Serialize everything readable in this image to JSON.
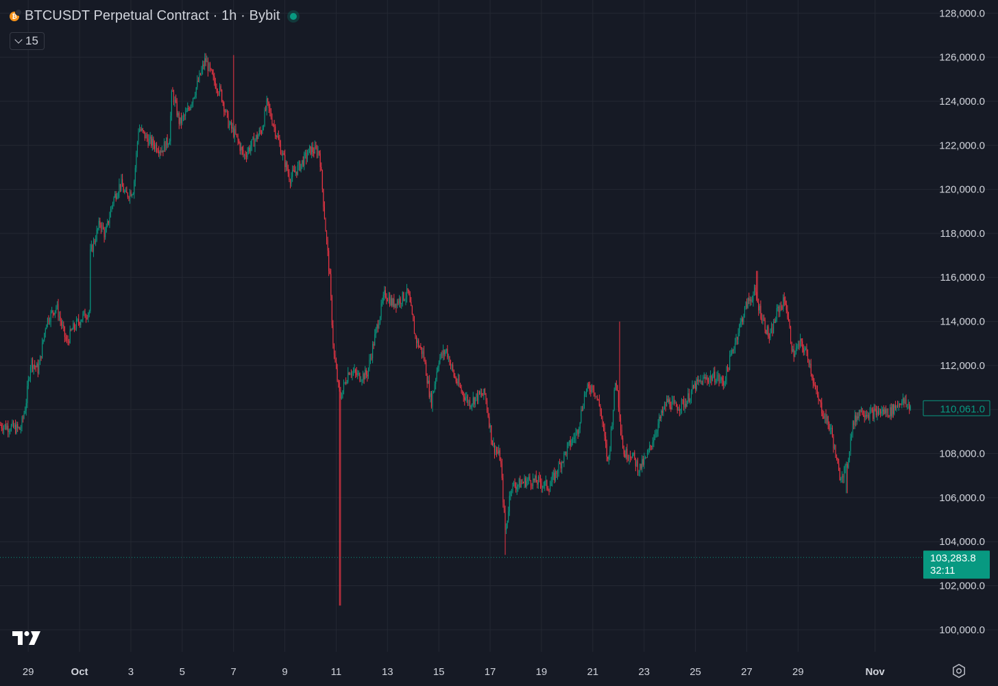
{
  "header": {
    "title": "BTCUSDT Perpetual Contract · 1h · Bybit",
    "coin_icon": "bitcoin-icon",
    "status_color": "#089981",
    "indicator_value": "15"
  },
  "colors": {
    "up": "#089981",
    "down": "#f23645",
    "background": "#161a25",
    "grid": "#242833"
  },
  "chart_data": {
    "type": "candlestick",
    "title": "BTCUSDT Perpetual Contract · 1h · Bybit",
    "ylim": [
      99000,
      128600
    ],
    "y_ticks": [
      100000,
      102000,
      104000,
      106000,
      108000,
      110000,
      112000,
      114000,
      116000,
      118000,
      120000,
      122000,
      124000,
      126000,
      128000
    ],
    "y_tick_labels": [
      "100,000.0",
      "102,000.0",
      "104,000.0",
      "106,000.0",
      "108,000.0",
      "110,000.0",
      "112,000.0",
      "114,000.0",
      "116,000.0",
      "118,000.0",
      "120,000.0",
      "122,000.0",
      "124,000.0",
      "126,000.0",
      "128,000.0"
    ],
    "x_ticks": [
      "29",
      "Oct",
      "3",
      "5",
      "7",
      "9",
      "11",
      "13",
      "15",
      "17",
      "19",
      "21",
      "23",
      "25",
      "27",
      "29",
      "Nov"
    ],
    "x_tick_days": [
      -2,
      0,
      2,
      4,
      6,
      8,
      10,
      12,
      14,
      16,
      18,
      20,
      22,
      24,
      26,
      28,
      31
    ],
    "x_range_days": [
      -3.1,
      32.8
    ],
    "grid": true,
    "last_price": {
      "value": 110061.0,
      "label": "110,061.0"
    },
    "marker_price": {
      "value": 103283.8,
      "label": "103,283.8",
      "countdown": "32:11"
    },
    "price_path": [
      [
        -3.1,
        109300
      ],
      [
        -2.3,
        109100
      ],
      [
        -2.1,
        110200
      ],
      [
        -1.9,
        112200
      ],
      [
        -1.6,
        111800
      ],
      [
        -1.3,
        114000
      ],
      [
        -0.9,
        114700
      ],
      [
        -0.5,
        113000
      ],
      [
        -0.3,
        113600
      ],
      [
        0.1,
        114200
      ],
      [
        0.4,
        114500
      ],
      [
        0.4,
        117000
      ],
      [
        0.8,
        118500
      ],
      [
        1.0,
        117900
      ],
      [
        1.3,
        119500
      ],
      [
        1.6,
        120300
      ],
      [
        1.8,
        119700
      ],
      [
        2.1,
        120000
      ],
      [
        2.3,
        122800
      ],
      [
        2.7,
        122200
      ],
      [
        3.2,
        121800
      ],
      [
        3.5,
        122300
      ],
      [
        3.6,
        124500
      ],
      [
        3.9,
        123000
      ],
      [
        4.2,
        123500
      ],
      [
        4.6,
        124800
      ],
      [
        4.9,
        125900
      ],
      [
        5.2,
        125000
      ],
      [
        5.5,
        124400
      ],
      [
        5.8,
        123000
      ],
      [
        6.1,
        122400
      ],
      [
        6.4,
        121500
      ],
      [
        6.8,
        122200
      ],
      [
        7.1,
        122700
      ],
      [
        7.3,
        123900
      ],
      [
        7.6,
        122800
      ],
      [
        7.9,
        121600
      ],
      [
        8.2,
        120500
      ],
      [
        8.6,
        121100
      ],
      [
        9.0,
        121800
      ],
      [
        9.35,
        121700
      ],
      [
        9.6,
        118000
      ],
      [
        9.75,
        116000
      ],
      [
        9.9,
        112600
      ],
      [
        10.15,
        110500
      ],
      [
        10.5,
        111800
      ],
      [
        10.9,
        111500
      ],
      [
        11.2,
        111600
      ],
      [
        11.6,
        113800
      ],
      [
        11.9,
        115300
      ],
      [
        12.2,
        114800
      ],
      [
        12.5,
        115000
      ],
      [
        12.8,
        115300
      ],
      [
        13.1,
        113200
      ],
      [
        13.4,
        112500
      ],
      [
        13.7,
        110300
      ],
      [
        14.0,
        112300
      ],
      [
        14.3,
        112700
      ],
      [
        14.6,
        111500
      ],
      [
        14.9,
        110800
      ],
      [
        15.2,
        110300
      ],
      [
        15.5,
        110600
      ],
      [
        15.8,
        110700
      ],
      [
        16.1,
        108400
      ],
      [
        16.4,
        107800
      ],
      [
        16.6,
        104300
      ],
      [
        16.8,
        106500
      ],
      [
        17.1,
        106600
      ],
      [
        17.5,
        106800
      ],
      [
        17.9,
        106700
      ],
      [
        18.3,
        106500
      ],
      [
        18.6,
        107200
      ],
      [
        19.0,
        108200
      ],
      [
        19.4,
        109000
      ],
      [
        19.7,
        110800
      ],
      [
        20.0,
        111100
      ],
      [
        20.3,
        110000
      ],
      [
        20.6,
        107500
      ],
      [
        20.9,
        111500
      ],
      [
        21.2,
        108000
      ],
      [
        21.5,
        108000
      ],
      [
        21.8,
        107300
      ],
      [
        22.1,
        107800
      ],
      [
        22.5,
        109200
      ],
      [
        22.9,
        110400
      ],
      [
        23.2,
        110100
      ],
      [
        23.6,
        110300
      ],
      [
        24.0,
        111100
      ],
      [
        24.4,
        111400
      ],
      [
        24.8,
        111500
      ],
      [
        25.1,
        111200
      ],
      [
        25.4,
        112500
      ],
      [
        25.7,
        113700
      ],
      [
        26.0,
        114800
      ],
      [
        26.3,
        115300
      ],
      [
        26.6,
        114200
      ],
      [
        26.9,
        113200
      ],
      [
        27.2,
        114500
      ],
      [
        27.5,
        115000
      ],
      [
        27.8,
        112500
      ],
      [
        28.1,
        113000
      ],
      [
        28.4,
        112400
      ],
      [
        28.7,
        110700
      ],
      [
        29.0,
        109800
      ],
      [
        29.3,
        109000
      ],
      [
        29.6,
        107000
      ],
      [
        29.9,
        107300
      ],
      [
        30.1,
        109200
      ],
      [
        30.4,
        110000
      ],
      [
        30.8,
        109800
      ],
      [
        31.2,
        109900
      ],
      [
        31.6,
        109900
      ],
      [
        32.0,
        110400
      ],
      [
        32.4,
        110100
      ]
    ],
    "wick_extremes": [
      {
        "day": 10.15,
        "low": 101100
      },
      {
        "day": 16.6,
        "low": 103400
      },
      {
        "day": 6.0,
        "high": 126100
      },
      {
        "day": 21.05,
        "high": 114000
      },
      {
        "day": 26.4,
        "high": 116300
      },
      {
        "day": 29.9,
        "low": 106200
      }
    ],
    "candles_per_day": 24
  }
}
